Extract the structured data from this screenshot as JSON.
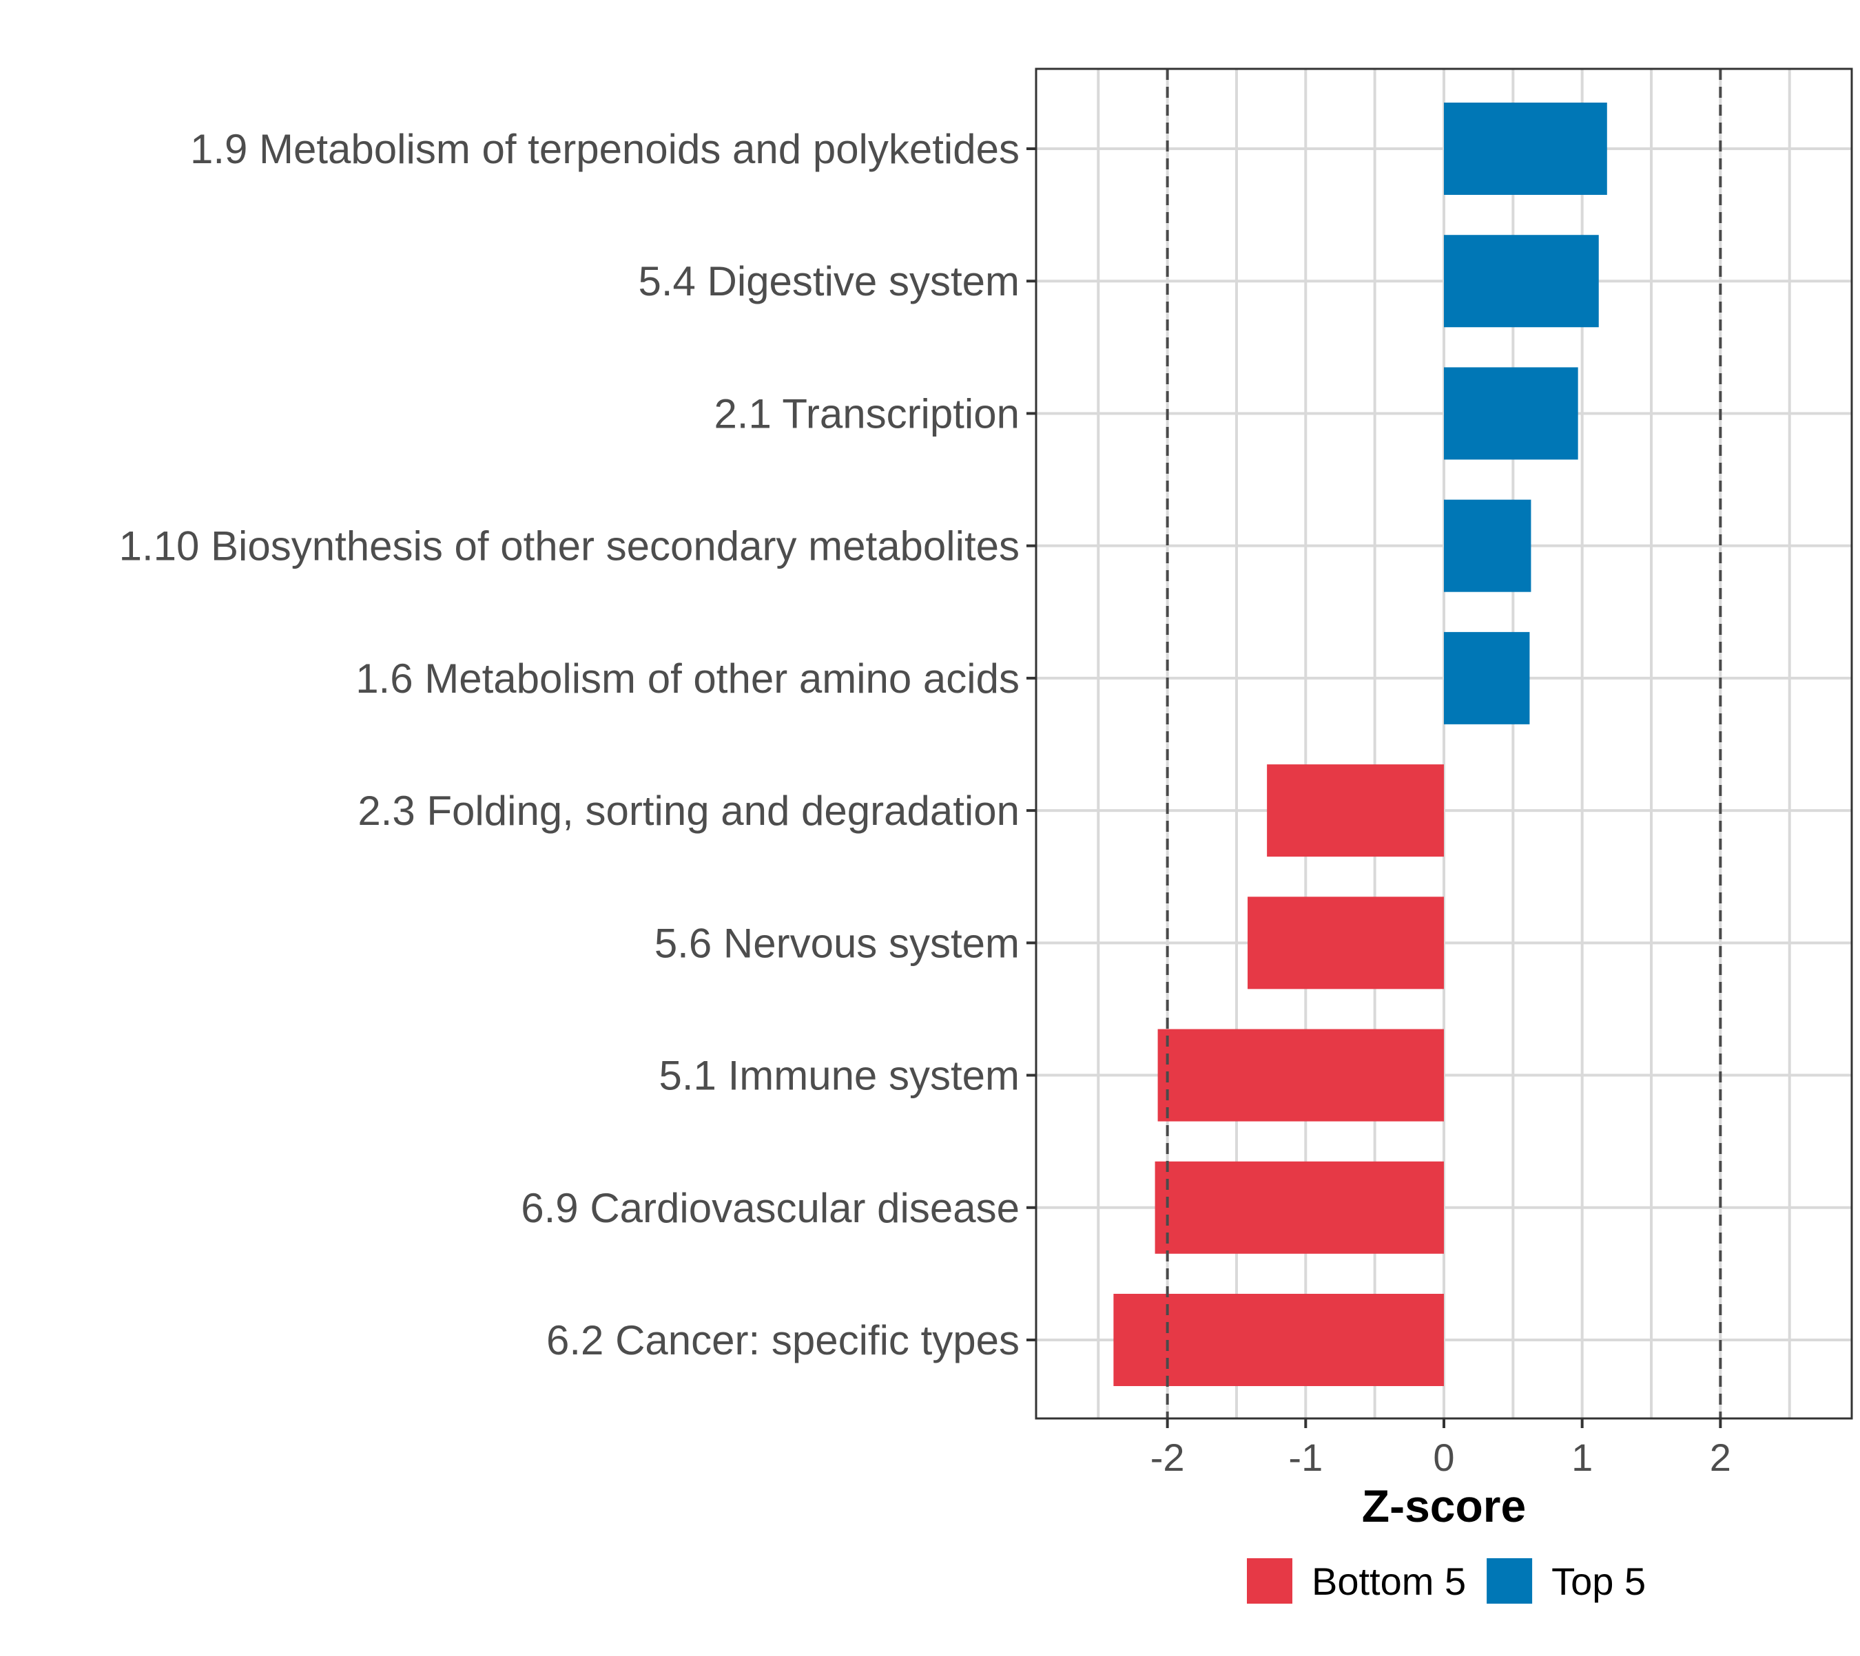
{
  "chart_data": {
    "type": "bar",
    "orientation": "horizontal",
    "title": "",
    "xlabel": "Z-score",
    "ylabel": "",
    "xlim": [
      -2.95,
      2.95
    ],
    "xticks": [
      -2,
      -1,
      0,
      1,
      2
    ],
    "xtick_labels": [
      "-2",
      "-1",
      "0",
      "1",
      "2"
    ],
    "grid": true,
    "reference_lines": [
      -2,
      2
    ],
    "categories": [
      "1.9 Metabolism of terpenoids and polyketides",
      "5.4 Digestive system",
      "2.1 Transcription",
      "1.10 Biosynthesis of other secondary metabolites",
      "1.6 Metabolism of other amino acids",
      "2.3 Folding, sorting and degradation",
      "5.6 Nervous system",
      "5.1 Immune system",
      "6.9 Cardiovascular disease",
      "6.2 Cancer: specific types"
    ],
    "values": [
      1.18,
      1.12,
      0.97,
      0.63,
      0.62,
      -1.28,
      -1.42,
      -2.07,
      -2.09,
      -2.39
    ],
    "groups": [
      "Top 5",
      "Top 5",
      "Top 5",
      "Top 5",
      "Top 5",
      "Bottom 5",
      "Bottom 5",
      "Bottom 5",
      "Bottom 5",
      "Bottom 5"
    ],
    "legend": {
      "position": "bottom",
      "entries": [
        {
          "label": "Bottom 5",
          "color": "#E63946"
        },
        {
          "label": "Top 5",
          "color": "#0077B6"
        }
      ]
    }
  }
}
